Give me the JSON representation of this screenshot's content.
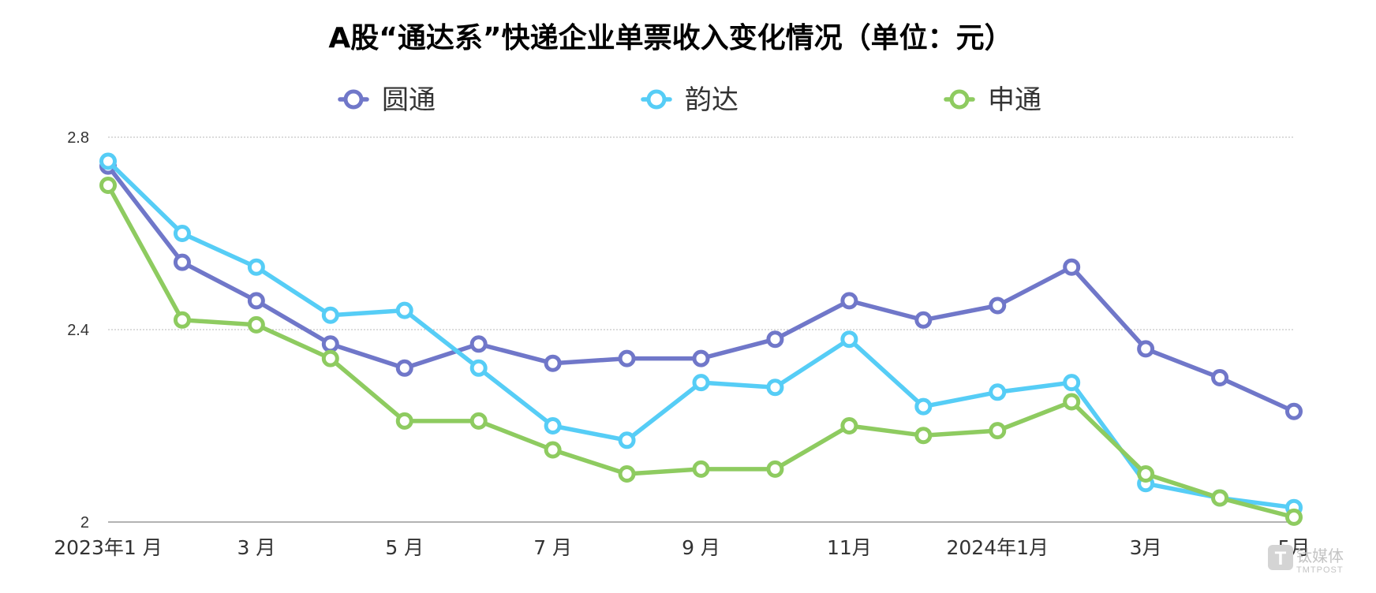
{
  "chart_data": {
    "type": "line",
    "title": "A股“通达系”快递企业单票收入变化情况（单位：元）",
    "xlabel": "",
    "ylabel": "",
    "x_tick_labels": [
      "2023年1 月",
      "",
      "3 月",
      "",
      "5 月",
      "",
      "7 月",
      "",
      "9 月",
      "",
      "11月",
      "",
      "2024年1月",
      "",
      "3月",
      "",
      "5月"
    ],
    "y_ticks": [
      2,
      2.4,
      2.8
    ],
    "y_tick_labels": [
      "2",
      "2.4",
      "2.8"
    ],
    "ylim": [
      2,
      2.8
    ],
    "grid": "horizontal dotted",
    "legend_position": "top-center",
    "series": [
      {
        "name": "圆通",
        "color": "#7077c9",
        "values": [
          2.74,
          2.54,
          2.46,
          2.37,
          2.32,
          2.37,
          2.33,
          2.34,
          2.34,
          2.38,
          2.46,
          2.42,
          2.45,
          2.53,
          2.36,
          2.3,
          2.23
        ]
      },
      {
        "name": "韵达",
        "color": "#56cdf6",
        "values": [
          2.75,
          2.6,
          2.53,
          2.43,
          2.44,
          2.32,
          2.2,
          2.17,
          2.29,
          2.28,
          2.38,
          2.24,
          2.27,
          2.29,
          2.08,
          2.05,
          2.03
        ]
      },
      {
        "name": "申通",
        "color": "#8ecb60",
        "values": [
          2.7,
          2.42,
          2.41,
          2.34,
          2.21,
          2.21,
          2.15,
          2.1,
          2.11,
          2.11,
          2.2,
          2.18,
          2.19,
          2.25,
          2.1,
          2.05,
          2.01
        ]
      }
    ]
  },
  "watermark": {
    "text": "钛媒体",
    "sub": "TMTPOST"
  }
}
